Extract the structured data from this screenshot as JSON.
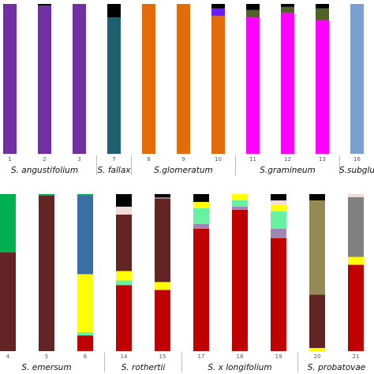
{
  "chart_data": [
    {
      "type": "bar",
      "stacked": true,
      "ylim": [
        0,
        1
      ],
      "categories": [
        "1",
        "2",
        "3",
        "7",
        "8",
        "9",
        "10",
        "11",
        "12",
        "13",
        "16"
      ],
      "groups": [
        "S. angustifolium",
        null,
        null,
        "S. fallax",
        "S.glomeratum",
        null,
        null,
        "S.gramineum",
        null,
        null,
        "S.subglu"
      ],
      "series": [
        {
          "color": "#7030a0",
          "values": [
            1,
            0.99,
            1,
            0,
            0,
            0,
            0,
            0,
            0,
            0,
            0
          ]
        },
        {
          "color": "#215f6e",
          "values": [
            0,
            0,
            0,
            0.91,
            0,
            0,
            0,
            0,
            0,
            0,
            0
          ]
        },
        {
          "color": "#e36c0a",
          "values": [
            0,
            0,
            0,
            0,
            1,
            1,
            0.92,
            0,
            0,
            0,
            0
          ]
        },
        {
          "color": "#ff00ff",
          "values": [
            0,
            0,
            0,
            0,
            0,
            0,
            0,
            0.91,
            0.94,
            0.89,
            0
          ]
        },
        {
          "color": "#7a9fd0",
          "values": [
            0,
            0,
            0,
            0,
            0,
            0,
            0,
            0,
            0,
            0,
            1
          ]
        },
        {
          "color": "#4f6228",
          "values": [
            0,
            0,
            0,
            0,
            0,
            0,
            0,
            0.05,
            0.04,
            0.08,
            0
          ]
        },
        {
          "color": "#6a1bff",
          "values": [
            0,
            0,
            0,
            0,
            0,
            0,
            0.05,
            0,
            0,
            0,
            0
          ]
        },
        {
          "color": "#000000",
          "values": [
            0,
            0.01,
            0,
            0.09,
            0,
            0,
            0.03,
            0.04,
            0.02,
            0.03,
            0
          ]
        }
      ]
    },
    {
      "type": "bar",
      "stacked": true,
      "ylim": [
        0,
        1
      ],
      "categories": [
        "4",
        "5",
        "6",
        "14",
        "15",
        "17",
        "18",
        "19",
        "20",
        "21"
      ],
      "groups": [
        "S. emersum",
        null,
        null,
        "S. rothertii",
        null,
        "S. x longifolium",
        null,
        null,
        "S. probatovae",
        null
      ],
      "series": [
        {
          "color": "#c00000",
          "values": [
            0,
            0,
            0.1,
            0.42,
            0.39,
            0.78,
            0.9,
            0.72,
            0,
            0.55
          ]
        },
        {
          "color": "#9d88b5",
          "values": [
            0,
            0,
            0,
            0,
            0,
            0.03,
            0.02,
            0.06,
            0,
            0
          ]
        },
        {
          "color": "#66f2a0",
          "values": [
            0,
            0,
            0.02,
            0.03,
            0,
            0.1,
            0.04,
            0.11,
            0,
            0
          ]
        },
        {
          "color": "#ffff00",
          "values": [
            0,
            0,
            0.37,
            0.06,
            0.05,
            0.04,
            0.04,
            0.04,
            0.02,
            0.05
          ]
        },
        {
          "color": "#632523",
          "values": [
            0.63,
            0.99,
            0,
            0.36,
            0.53,
            0,
            0,
            0,
            0.34,
            0
          ]
        },
        {
          "color": "#948a54",
          "values": [
            0,
            0,
            0,
            0,
            0,
            0,
            0,
            0,
            0.6,
            0
          ]
        },
        {
          "color": "#3c6ea6",
          "values": [
            0,
            0,
            0.5,
            0,
            0,
            0,
            0,
            0,
            0,
            0
          ]
        },
        {
          "color": "#00b050",
          "values": [
            0.37,
            0.01,
            0.01,
            0,
            0,
            0,
            0,
            0,
            0,
            0
          ]
        },
        {
          "color": "#808080",
          "values": [
            0,
            0,
            0,
            0,
            0.01,
            0,
            0,
            0,
            0,
            0.38
          ]
        },
        {
          "color": "#f2dcdb",
          "values": [
            0,
            0,
            0,
            0.05,
            0,
            0,
            0,
            0.03,
            0,
            0.02
          ]
        },
        {
          "color": "#000000",
          "values": [
            0,
            0,
            0,
            0.08,
            0.02,
            0.05,
            0,
            0.04,
            0.04,
            0
          ]
        }
      ]
    }
  ]
}
